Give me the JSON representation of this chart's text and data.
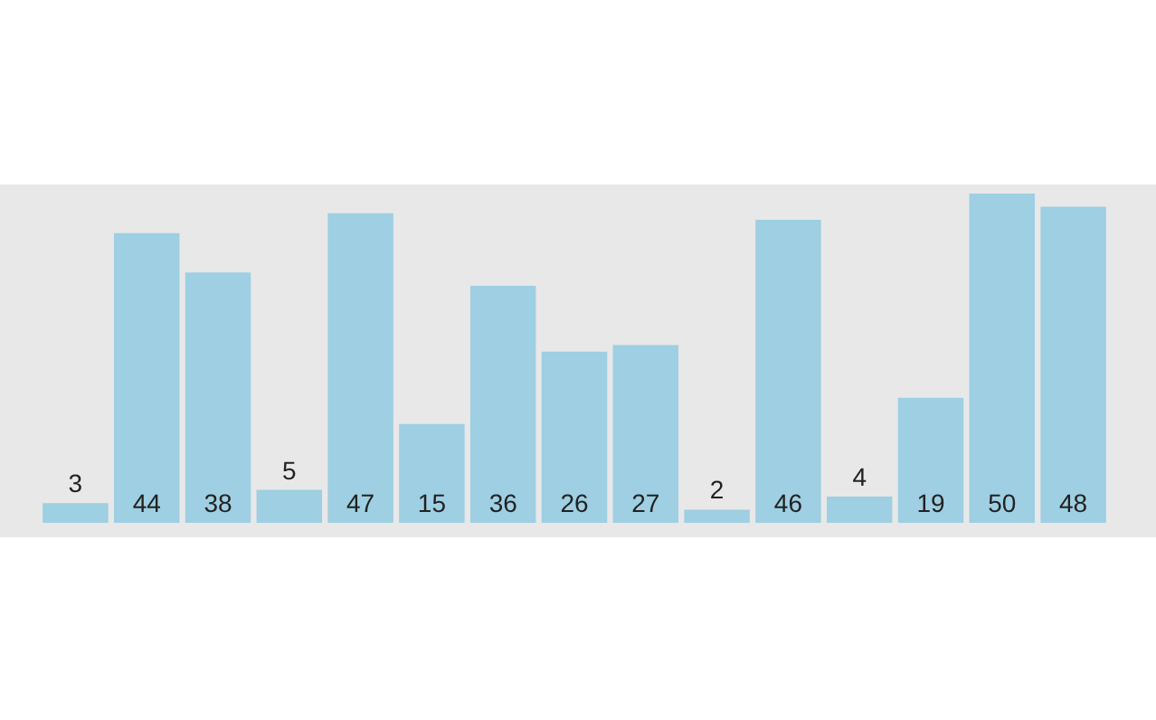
{
  "chart_data": {
    "type": "bar",
    "categories": [
      null,
      null,
      null,
      null,
      null,
      null,
      null,
      null,
      null,
      null,
      null,
      null,
      null,
      null,
      null
    ],
    "values": [
      3,
      44,
      38,
      5,
      47,
      15,
      36,
      26,
      27,
      2,
      46,
      4,
      19,
      50,
      48
    ],
    "color": "#9ecfe2",
    "data_labels": true,
    "tick_labels": false
  }
}
